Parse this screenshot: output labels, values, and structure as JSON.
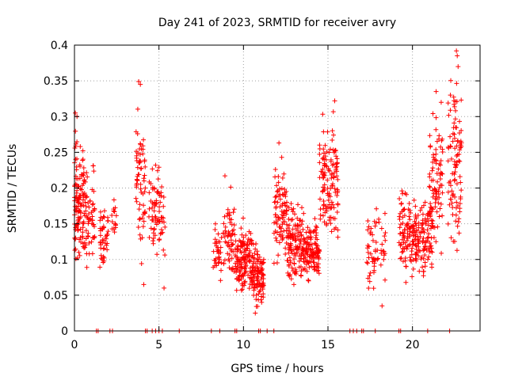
{
  "chart_data": {
    "type": "scatter",
    "title": "Day 241 of 2023, SRMTID for receiver avry",
    "xlabel": "GPS time / hours",
    "ylabel": "SRMTID / TECUs",
    "xlim": [
      0,
      24
    ],
    "ylim": [
      0,
      0.4
    ],
    "x_ticks": [
      0,
      5,
      10,
      15,
      20
    ],
    "x_tick_labels": [
      "0",
      "5",
      "10",
      "15",
      "20"
    ],
    "y_ticks": [
      0,
      0.05,
      0.1,
      0.15,
      0.2,
      0.25,
      0.3,
      0.35,
      0.4
    ],
    "y_tick_labels": [
      "0",
      "0.05",
      "0.1",
      "0.15",
      "0.2",
      "0.25",
      "0.3",
      "0.35",
      "0.4"
    ],
    "grid": true,
    "marker": "+",
    "color": "#ff0000",
    "clusters": [
      {
        "x_range": [
          0.0,
          0.6
        ],
        "y_range": [
          0.06,
          0.3
        ],
        "count": 120
      },
      {
        "x_range": [
          0.6,
          1.2
        ],
        "y_range": [
          0.06,
          0.25
        ],
        "count": 60
      },
      {
        "x_range": [
          1.5,
          2.0
        ],
        "y_range": [
          0.07,
          0.2
        ],
        "count": 45
      },
      {
        "x_range": [
          2.2,
          2.5
        ],
        "y_range": [
          0.12,
          0.2
        ],
        "count": 15
      },
      {
        "x_range": [
          3.6,
          4.2
        ],
        "y_range": [
          0.07,
          0.35
        ],
        "count": 65
      },
      {
        "x_range": [
          4.4,
          5.0
        ],
        "y_range": [
          0.08,
          0.27
        ],
        "count": 50
      },
      {
        "x_range": [
          5.0,
          5.4
        ],
        "y_range": [
          0.06,
          0.25
        ],
        "count": 25
      },
      {
        "x_range": [
          8.2,
          8.7
        ],
        "y_range": [
          0.05,
          0.17
        ],
        "count": 35
      },
      {
        "x_range": [
          8.8,
          9.5
        ],
        "y_range": [
          0.05,
          0.22
        ],
        "count": 60
      },
      {
        "x_range": [
          9.5,
          10.5
        ],
        "y_range": [
          0.04,
          0.16
        ],
        "count": 140
      },
      {
        "x_range": [
          10.5,
          11.2
        ],
        "y_range": [
          0.02,
          0.14
        ],
        "count": 110
      },
      {
        "x_range": [
          11.8,
          12.6
        ],
        "y_range": [
          0.07,
          0.26
        ],
        "count": 90
      },
      {
        "x_range": [
          12.6,
          13.5
        ],
        "y_range": [
          0.05,
          0.2
        ],
        "count": 120
      },
      {
        "x_range": [
          13.5,
          14.5
        ],
        "y_range": [
          0.06,
          0.17
        ],
        "count": 130
      },
      {
        "x_range": [
          14.5,
          15.6
        ],
        "y_range": [
          0.08,
          0.32
        ],
        "count": 130
      },
      {
        "x_range": [
          17.3,
          18.4
        ],
        "y_range": [
          0.04,
          0.19
        ],
        "count": 60
      },
      {
        "x_range": [
          19.2,
          20.2
        ],
        "y_range": [
          0.06,
          0.21
        ],
        "count": 110
      },
      {
        "x_range": [
          20.2,
          21.2
        ],
        "y_range": [
          0.06,
          0.2
        ],
        "count": 100
      },
      {
        "x_range": [
          21.0,
          21.8
        ],
        "y_range": [
          0.07,
          0.33
        ],
        "count": 90
      },
      {
        "x_range": [
          22.1,
          22.9
        ],
        "y_range": [
          0.08,
          0.39
        ],
        "count": 100
      }
    ],
    "peaks": [
      {
        "x": 0.05,
        "y": 0.305
      },
      {
        "x": 0.15,
        "y": 0.3
      },
      {
        "x": 3.8,
        "y": 0.349
      },
      {
        "x": 3.9,
        "y": 0.345
      },
      {
        "x": 15.4,
        "y": 0.322
      },
      {
        "x": 12.1,
        "y": 0.263
      },
      {
        "x": 21.4,
        "y": 0.335
      },
      {
        "x": 21.7,
        "y": 0.32
      },
      {
        "x": 22.6,
        "y": 0.392
      },
      {
        "x": 22.65,
        "y": 0.385
      },
      {
        "x": 22.7,
        "y": 0.37
      },
      {
        "x": 18.2,
        "y": 0.035
      },
      {
        "x": 10.7,
        "y": 0.025
      },
      {
        "x": 4.1,
        "y": 0.065
      },
      {
        "x": 5.3,
        "y": 0.06
      }
    ],
    "zero_points": [
      1.3,
      1.4,
      2.1,
      2.25,
      4.2,
      4.3,
      4.6,
      4.8,
      5.0,
      5.2,
      6.2,
      8.1,
      8.6,
      9.5,
      9.6,
      10.9,
      11.0,
      11.4,
      11.8,
      16.3,
      16.5,
      16.7,
      17.0,
      17.1,
      17.8,
      19.2,
      19.3,
      20.9,
      22.2
    ]
  }
}
